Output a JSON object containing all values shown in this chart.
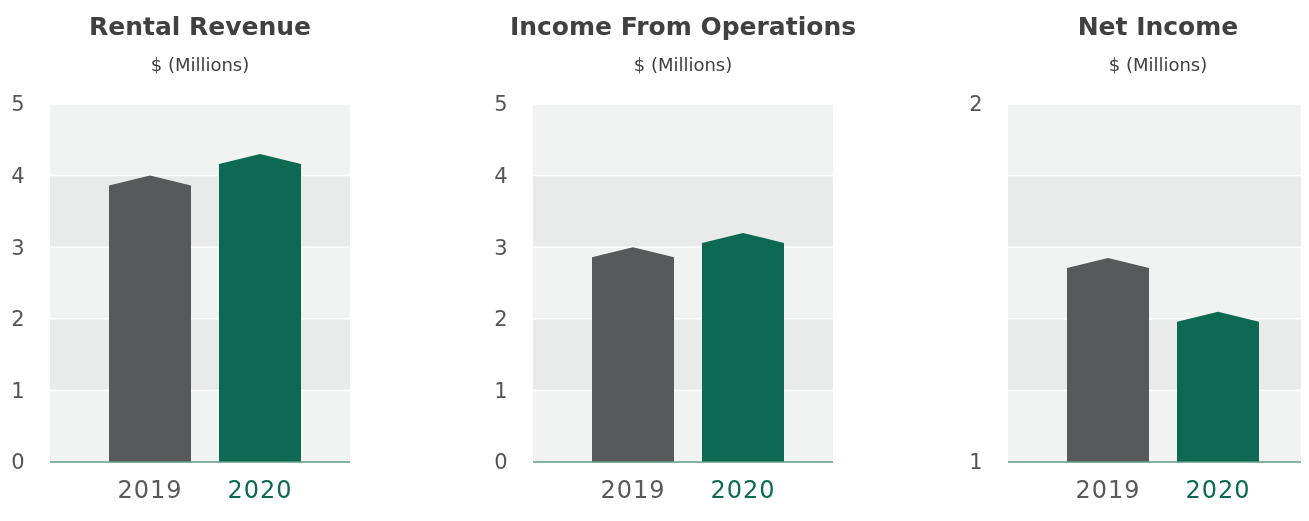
{
  "chart_data": [
    {
      "type": "bar",
      "title": "Rental Revenue",
      "subtitle": "$ (Millions)",
      "categories": [
        "2019",
        "2020"
      ],
      "values": [
        4.0,
        4.3
      ],
      "colors": [
        "#58595b",
        "#0e6952"
      ],
      "ylim": [
        0,
        5
      ],
      "yticks": [
        0,
        1,
        2,
        3,
        4,
        5
      ],
      "grid": true
    },
    {
      "type": "bar",
      "title": "Income From Operations",
      "subtitle": "$ (Millions)",
      "categories": [
        "2019",
        "2020"
      ],
      "values": [
        3.0,
        3.2
      ],
      "colors": [
        "#58595b",
        "#0e6952"
      ],
      "ylim": [
        0,
        5
      ],
      "yticks": [
        0,
        1,
        2,
        3,
        4,
        5
      ],
      "grid": true
    },
    {
      "type": "bar",
      "title": "Net Income",
      "subtitle": "$ (Millions)",
      "categories": [
        "2019",
        "2020"
      ],
      "values": [
        1.57,
        1.42
      ],
      "colors": [
        "#58595b",
        "#0e6952"
      ],
      "ylim": [
        1,
        2
      ],
      "yticks": [
        1,
        {
          "value": 1.2,
          "label": null
        },
        {
          "value": 1.4,
          "label": null
        },
        {
          "value": 1.6,
          "label": null
        },
        {
          "value": 1.8,
          "label": null
        },
        2
      ],
      "grid": true
    }
  ]
}
